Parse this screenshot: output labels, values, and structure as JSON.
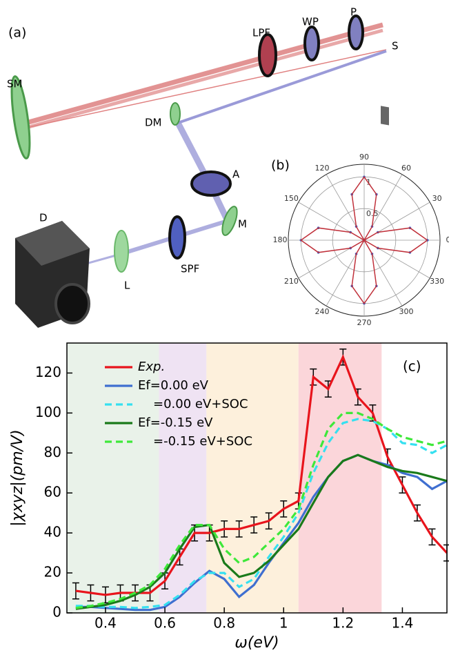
{
  "diagram": {
    "panel_label": "(a)",
    "labels": [
      "LPF",
      "WP",
      "P",
      "S",
      "SM",
      "DM",
      "A",
      "M",
      "D",
      "SPF",
      "L"
    ]
  },
  "chart_data": [
    {
      "type": "polar",
      "panel_label": "(b)",
      "color": "#c0303a",
      "marker_color": "#3a5fc8",
      "theta": [
        0,
        15,
        30,
        45,
        60,
        75,
        90,
        105,
        120,
        135,
        150,
        165,
        180,
        195,
        210,
        225,
        240,
        255,
        270,
        285,
        300,
        315,
        330,
        345,
        360
      ],
      "r": [
        1,
        0.75,
        0.25,
        0,
        0.25,
        0.75,
        1,
        0.75,
        0.25,
        0,
        0.25,
        0.75,
        1,
        0.75,
        0.25,
        0,
        0.25,
        0.75,
        1,
        0.75,
        0.25,
        0,
        0.25,
        0.75,
        1
      ],
      "rlim": [
        0,
        1.2
      ],
      "rticks": [
        0.5,
        1
      ],
      "thetaticks": [
        0,
        30,
        60,
        90,
        120,
        150,
        180,
        210,
        240,
        270,
        300,
        330
      ]
    },
    {
      "type": "line",
      "panel_label": "(c)",
      "xlabel": "ω(eV)",
      "ylabel": "|χxyz|(pm/V)",
      "xlim": [
        0.27,
        1.55
      ],
      "ylim": [
        0,
        135
      ],
      "xticks": [
        0.4,
        0.6,
        0.8,
        1.0,
        1.2,
        1.4
      ],
      "yticks": [
        0,
        20,
        40,
        60,
        80,
        100,
        120
      ],
      "regions": [
        {
          "x": [
            0.27,
            0.58
          ],
          "color": "#e9f2e9"
        },
        {
          "x": [
            0.58,
            0.74
          ],
          "color": "#efe3f3"
        },
        {
          "x": [
            0.74,
            1.05
          ],
          "color": "#fdf0dc"
        },
        {
          "x": [
            1.05,
            1.33
          ],
          "color": "#fbd6da"
        }
      ],
      "x": [
        0.3,
        0.35,
        0.4,
        0.45,
        0.5,
        0.55,
        0.6,
        0.65,
        0.7,
        0.75,
        0.8,
        0.85,
        0.9,
        0.95,
        1.0,
        1.05,
        1.1,
        1.15,
        1.2,
        1.25,
        1.3,
        1.35,
        1.4,
        1.45,
        1.5,
        1.55
      ],
      "series": [
        {
          "name": "Exp.",
          "color": "#e8141c",
          "dash": false,
          "values": [
            11,
            10,
            9,
            10,
            10,
            10,
            16,
            28,
            40,
            40,
            42,
            42,
            44,
            46,
            52,
            56,
            118,
            112,
            128,
            108,
            100,
            78,
            64,
            50,
            38,
            30
          ],
          "errors": [
            4,
            4,
            4,
            4,
            4,
            4,
            4,
            4,
            4,
            4,
            4,
            4,
            4,
            4,
            4,
            4,
            4,
            4,
            4,
            4,
            4,
            4,
            4,
            4,
            4,
            4
          ]
        },
        {
          "name": "Ef=0.00 eV",
          "color": "#3f6fd0",
          "dash": false,
          "values": [
            3,
            3,
            2.5,
            2,
            1.5,
            1.5,
            3,
            8,
            15,
            21,
            17,
            8,
            14,
            25,
            35,
            45,
            58,
            68,
            76,
            79,
            76,
            74,
            70,
            68,
            62,
            66
          ]
        },
        {
          "name": "=0.00 eV+SOC",
          "color": "#35e0f0",
          "dash": true,
          "values": [
            3.5,
            3.5,
            3,
            3,
            2.5,
            3,
            4,
            9,
            16,
            20,
            20,
            13,
            17,
            28,
            38,
            50,
            70,
            85,
            95,
            97,
            96,
            92,
            85,
            84,
            80,
            84
          ]
        },
        {
          "name": "Ef=-0.15 eV",
          "color": "#1a7a1a",
          "dash": false,
          "values": [
            2,
            3,
            4,
            6,
            9,
            13,
            20,
            32,
            43,
            44,
            25,
            18,
            20,
            26,
            34,
            42,
            55,
            68,
            76,
            79,
            76,
            73,
            71,
            70,
            68,
            66
          ]
        },
        {
          "name": "=-0.15 eV+SOC",
          "color": "#3ee83a",
          "dash": true,
          "values": [
            2.5,
            3.5,
            5,
            7,
            10,
            14,
            22,
            34,
            44,
            44,
            32,
            25,
            28,
            35,
            42,
            52,
            74,
            92,
            100,
            100,
            97,
            92,
            88,
            86,
            84,
            86
          ]
        }
      ]
    }
  ]
}
